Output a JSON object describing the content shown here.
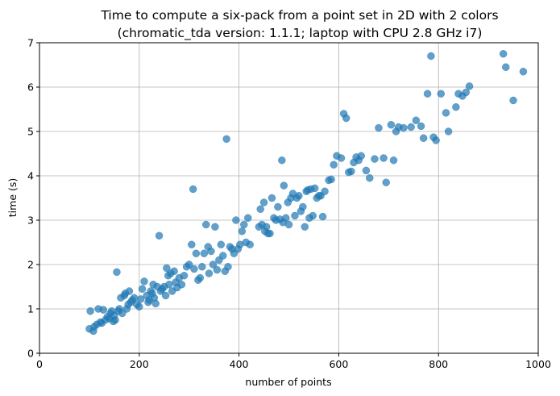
{
  "chart_data": {
    "type": "scatter",
    "title": "Time to compute a six-pack from a point set in 2D with 2 colors",
    "subtitle": "(chromatic_tda version: 1.1.1; laptop with CPU 2.8 GHz i7)",
    "xlabel": "number of points",
    "ylabel": "time (s)",
    "xlim": [
      0,
      1000
    ],
    "ylim": [
      0,
      7
    ],
    "xticks": [
      0,
      200,
      400,
      600,
      800,
      1000
    ],
    "yticks": [
      0,
      1,
      2,
      3,
      4,
      5,
      6,
      7
    ],
    "grid": true,
    "color": "#1f77b4",
    "points": [
      [
        100,
        0.55
      ],
      [
        102,
        0.95
      ],
      [
        108,
        0.5
      ],
      [
        110,
        0.6
      ],
      [
        115,
        0.65
      ],
      [
        118,
        1.0
      ],
      [
        122,
        0.7
      ],
      [
        125,
        0.68
      ],
      [
        128,
        0.98
      ],
      [
        132,
        0.75
      ],
      [
        136,
        0.82
      ],
      [
        140,
        0.78
      ],
      [
        142,
        0.9
      ],
      [
        145,
        0.95
      ],
      [
        148,
        0.72
      ],
      [
        150,
        0.85
      ],
      [
        152,
        0.75
      ],
      [
        155,
        1.83
      ],
      [
        158,
        0.95
      ],
      [
        160,
        1.0
      ],
      [
        163,
        1.25
      ],
      [
        166,
        0.9
      ],
      [
        170,
        1.3
      ],
      [
        172,
        1.35
      ],
      [
        175,
        1.0
      ],
      [
        178,
        1.1
      ],
      [
        180,
        1.4
      ],
      [
        183,
        1.15
      ],
      [
        186,
        1.2
      ],
      [
        190,
        1.25
      ],
      [
        195,
        1.1
      ],
      [
        200,
        1.05
      ],
      [
        203,
        1.22
      ],
      [
        206,
        1.45
      ],
      [
        210,
        1.62
      ],
      [
        215,
        1.3
      ],
      [
        218,
        1.15
      ],
      [
        220,
        1.2
      ],
      [
        223,
        1.4
      ],
      [
        226,
        1.35
      ],
      [
        228,
        1.55
      ],
      [
        230,
        1.25
      ],
      [
        233,
        1.12
      ],
      [
        236,
        1.5
      ],
      [
        240,
        2.65
      ],
      [
        243,
        1.4
      ],
      [
        246,
        1.45
      ],
      [
        250,
        1.5
      ],
      [
        253,
        1.3
      ],
      [
        255,
        1.92
      ],
      [
        258,
        1.75
      ],
      [
        260,
        1.55
      ],
      [
        263,
        1.8
      ],
      [
        266,
        1.4
      ],
      [
        270,
        1.85
      ],
      [
        273,
        1.6
      ],
      [
        276,
        1.48
      ],
      [
        280,
        1.7
      ],
      [
        285,
        1.55
      ],
      [
        290,
        1.75
      ],
      [
        295,
        1.95
      ],
      [
        300,
        2.0
      ],
      [
        305,
        2.45
      ],
      [
        308,
        3.7
      ],
      [
        310,
        1.9
      ],
      [
        314,
        2.25
      ],
      [
        318,
        1.65
      ],
      [
        322,
        1.7
      ],
      [
        326,
        1.95
      ],
      [
        330,
        2.25
      ],
      [
        334,
        2.9
      ],
      [
        338,
        2.4
      ],
      [
        340,
        1.8
      ],
      [
        344,
        2.3
      ],
      [
        348,
        2.0
      ],
      [
        352,
        2.85
      ],
      [
        356,
        1.88
      ],
      [
        360,
        2.1
      ],
      [
        364,
        2.45
      ],
      [
        368,
        2.2
      ],
      [
        372,
        1.85
      ],
      [
        375,
        4.83
      ],
      [
        378,
        1.95
      ],
      [
        382,
        2.4
      ],
      [
        386,
        2.35
      ],
      [
        390,
        2.25
      ],
      [
        394,
        3.0
      ],
      [
        398,
        2.35
      ],
      [
        402,
        2.45
      ],
      [
        406,
        2.75
      ],
      [
        410,
        2.9
      ],
      [
        414,
        2.5
      ],
      [
        418,
        3.05
      ],
      [
        422,
        2.45
      ],
      [
        440,
        2.85
      ],
      [
        443,
        3.25
      ],
      [
        446,
        2.9
      ],
      [
        450,
        3.4
      ],
      [
        452,
        2.75
      ],
      [
        455,
        2.85
      ],
      [
        458,
        2.7
      ],
      [
        462,
        2.7
      ],
      [
        466,
        3.5
      ],
      [
        470,
        3.05
      ],
      [
        474,
        3.0
      ],
      [
        478,
        3.3
      ],
      [
        482,
        3.02
      ],
      [
        486,
        4.35
      ],
      [
        488,
        2.95
      ],
      [
        490,
        3.78
      ],
      [
        494,
        3.05
      ],
      [
        498,
        3.4
      ],
      [
        500,
        2.9
      ],
      [
        504,
        3.5
      ],
      [
        508,
        3.6
      ],
      [
        512,
        3.1
      ],
      [
        516,
        3.5
      ],
      [
        520,
        3.55
      ],
      [
        524,
        3.2
      ],
      [
        528,
        3.3
      ],
      [
        532,
        2.85
      ],
      [
        535,
        3.65
      ],
      [
        538,
        3.68
      ],
      [
        541,
        3.05
      ],
      [
        544,
        3.7
      ],
      [
        548,
        3.1
      ],
      [
        552,
        3.72
      ],
      [
        556,
        3.5
      ],
      [
        560,
        3.55
      ],
      [
        564,
        3.55
      ],
      [
        568,
        3.08
      ],
      [
        572,
        3.65
      ],
      [
        580,
        3.9
      ],
      [
        585,
        3.92
      ],
      [
        590,
        4.25
      ],
      [
        596,
        4.45
      ],
      [
        605,
        4.4
      ],
      [
        610,
        5.4
      ],
      [
        615,
        5.3
      ],
      [
        620,
        4.08
      ],
      [
        625,
        4.1
      ],
      [
        630,
        4.3
      ],
      [
        635,
        4.42
      ],
      [
        640,
        4.35
      ],
      [
        645,
        4.45
      ],
      [
        655,
        4.12
      ],
      [
        662,
        3.95
      ],
      [
        672,
        4.38
      ],
      [
        680,
        5.08
      ],
      [
        690,
        4.4
      ],
      [
        695,
        3.85
      ],
      [
        705,
        5.15
      ],
      [
        710,
        4.35
      ],
      [
        715,
        5.0
      ],
      [
        720,
        5.1
      ],
      [
        730,
        5.08
      ],
      [
        745,
        5.1
      ],
      [
        755,
        5.25
      ],
      [
        765,
        5.12
      ],
      [
        770,
        4.85
      ],
      [
        778,
        5.85
      ],
      [
        785,
        6.7
      ],
      [
        790,
        4.87
      ],
      [
        795,
        4.8
      ],
      [
        805,
        5.85
      ],
      [
        815,
        5.42
      ],
      [
        820,
        5.0
      ],
      [
        835,
        5.55
      ],
      [
        840,
        5.85
      ],
      [
        848,
        5.8
      ],
      [
        855,
        5.88
      ],
      [
        862,
        6.02
      ],
      [
        930,
        6.75
      ],
      [
        935,
        6.45
      ],
      [
        950,
        5.7
      ],
      [
        970,
        6.35
      ]
    ]
  }
}
